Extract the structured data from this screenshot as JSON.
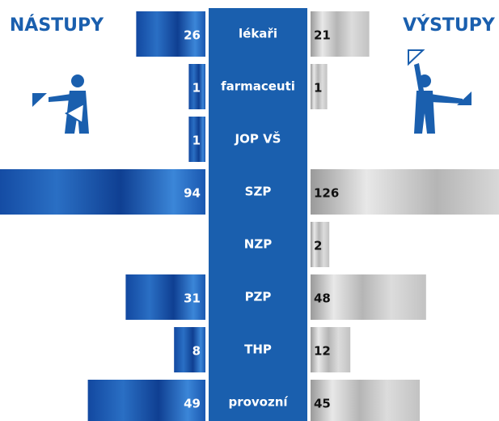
{
  "chart_data": {
    "type": "butterfly",
    "categories": [
      "lékaři",
      "farmaceuti",
      "JOP VŠ",
      "SZP",
      "NZP",
      "PZP",
      "THP",
      "provozní"
    ],
    "series": [
      {
        "name": "NÁSTUPY",
        "color": "#1a5fae",
        "values": [
          26,
          1,
          1,
          94,
          null,
          31,
          8,
          49
        ]
      },
      {
        "name": "VÝSTUPY",
        "color": "#bdbdbd",
        "values": [
          21,
          1,
          null,
          126,
          2,
          48,
          12,
          45
        ]
      }
    ]
  }
}
